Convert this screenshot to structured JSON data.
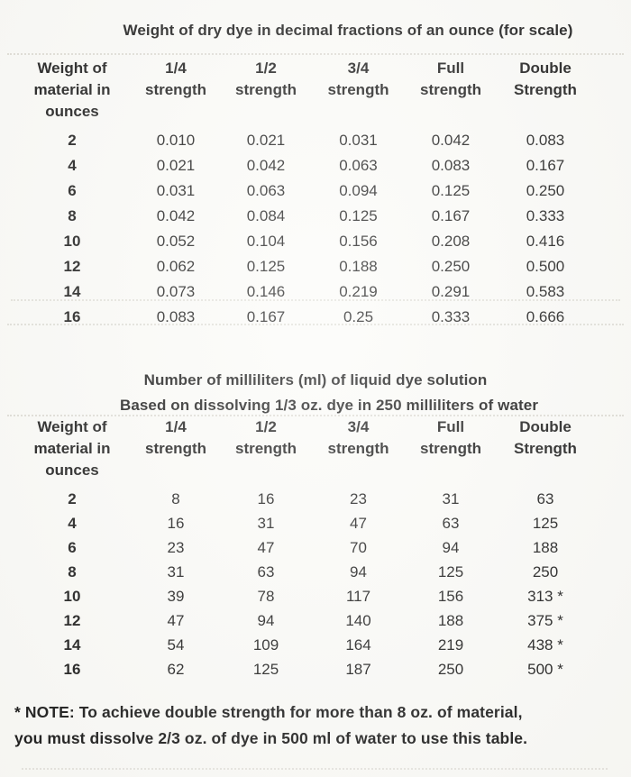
{
  "colors": {
    "page_background": "#fbfbf8",
    "ink": "#101010",
    "scan_artifact": "#c7c4ba"
  },
  "table1": {
    "title": "Weight of dry dye in decimal fractions of an ounce (for scale)",
    "header_columns": [
      {
        "lines": [
          "Weight of",
          "material in",
          "ounces"
        ]
      },
      {
        "lines": [
          "1/4",
          "strength"
        ]
      },
      {
        "lines": [
          "1/2",
          "strength"
        ]
      },
      {
        "lines": [
          "3/4",
          "strength"
        ]
      },
      {
        "lines": [
          "Full",
          "strength"
        ]
      },
      {
        "lines": [
          "Double",
          "Strength"
        ]
      }
    ],
    "rows": [
      [
        "2",
        "0.010",
        "0.021",
        "0.031",
        "0.042",
        "0.083"
      ],
      [
        "4",
        "0.021",
        "0.042",
        "0.063",
        "0.083",
        "0.167"
      ],
      [
        "6",
        "0.031",
        "0.063",
        "0.094",
        "0.125",
        "0.250"
      ],
      [
        "8",
        "0.042",
        "0.084",
        "0.125",
        "0.167",
        "0.333"
      ],
      [
        "10",
        "0.052",
        "0.104",
        "0.156",
        "0.208",
        "0.416"
      ],
      [
        "12",
        "0.062",
        "0.125",
        "0.188",
        "0.250",
        "0.500"
      ],
      [
        "14",
        "0.073",
        "0.146",
        "0.219",
        "0.291",
        "0.583"
      ],
      [
        "16",
        "0.083",
        "0.167",
        "0.25",
        "0.333",
        "0.666"
      ]
    ]
  },
  "table2": {
    "title": "Number of milliliters (ml) of liquid dye solution",
    "subtitle": "Based on dissolving 1/3 oz. dye in 250 milliliters of water",
    "header_columns": [
      {
        "lines": [
          "Weight of",
          "material in",
          "ounces"
        ]
      },
      {
        "lines": [
          "1/4",
          "strength"
        ]
      },
      {
        "lines": [
          "1/2",
          "strength"
        ]
      },
      {
        "lines": [
          "3/4",
          "strength"
        ]
      },
      {
        "lines": [
          "Full",
          "strength"
        ]
      },
      {
        "lines": [
          "Double",
          "Strength"
        ]
      }
    ],
    "rows": [
      [
        "2",
        "8",
        "16",
        "23",
        "31",
        "63"
      ],
      [
        "4",
        "16",
        "31",
        "47",
        "63",
        "125"
      ],
      [
        "6",
        "23",
        "47",
        "70",
        "94",
        "188"
      ],
      [
        "8",
        "31",
        "63",
        "94",
        "125",
        "250"
      ],
      [
        "10",
        "39",
        "78",
        "117",
        "156",
        "313 *"
      ],
      [
        "12",
        "47",
        "94",
        "140",
        "188",
        "375 *"
      ],
      [
        "14",
        "54",
        "109",
        "164",
        "219",
        "438 *"
      ],
      [
        "16",
        "62",
        "125",
        "187",
        "250",
        "500 *"
      ]
    ]
  },
  "footnote": {
    "line1": "* NOTE: To achieve double strength for more than 8 oz. of material,",
    "line2": "you must dissolve 2/3 oz. of dye in 500 ml of water to use this table."
  }
}
